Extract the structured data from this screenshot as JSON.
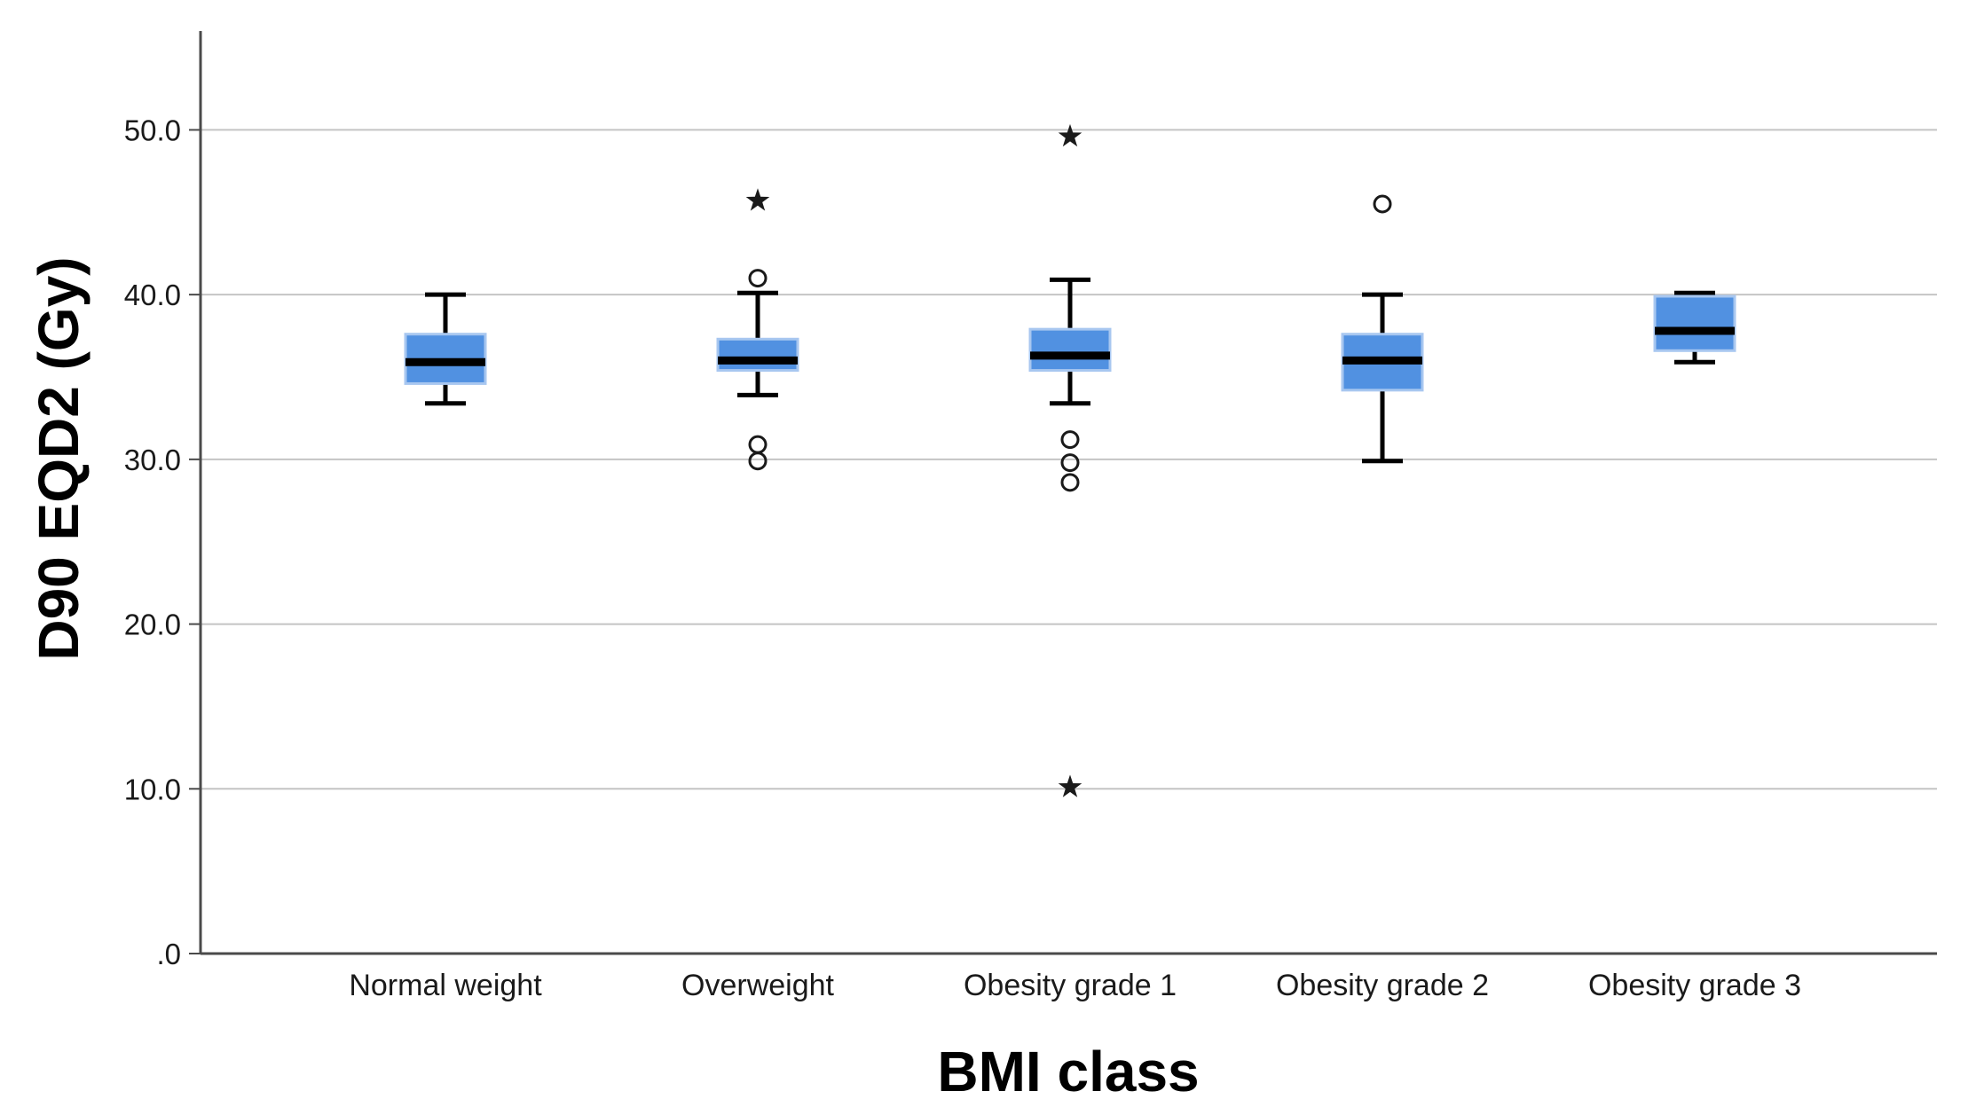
{
  "chart_data": {
    "type": "boxplot",
    "title": "",
    "xlabel": "BMI class",
    "ylabel": "D90 EQD2 (Gy)",
    "categories": [
      "Normal weight",
      "Overweight",
      "Obesity grade 1",
      "Obesity grade 2",
      "Obesity grade 3"
    ],
    "ylim": [
      0,
      56
    ],
    "grid": true,
    "legend": "none",
    "yticks": [
      {
        "value": 0,
        "label": ".0"
      },
      {
        "value": 10,
        "label": "10.0"
      },
      {
        "value": 20,
        "label": "20.0"
      },
      {
        "value": 30,
        "label": "30.0"
      },
      {
        "value": 40,
        "label": "40.0"
      },
      {
        "value": 50,
        "label": "50.0"
      }
    ],
    "boxes": [
      {
        "category": "Normal weight",
        "whisker_low": 33.4,
        "q1": 34.6,
        "median": 35.9,
        "q3": 37.6,
        "whisker_high": 40.0,
        "outliers": []
      },
      {
        "category": "Overweight",
        "whisker_low": 33.9,
        "q1": 35.4,
        "median": 36.0,
        "q3": 37.3,
        "whisker_high": 40.1,
        "outliers": [
          {
            "value": 45.7,
            "symbol": "star"
          },
          {
            "value": 41.0,
            "symbol": "circle"
          },
          {
            "value": 30.9,
            "symbol": "circle"
          },
          {
            "value": 29.9,
            "symbol": "circle"
          }
        ]
      },
      {
        "category": "Obesity grade 1",
        "whisker_low": 33.4,
        "q1": 35.4,
        "median": 36.3,
        "q3": 37.9,
        "whisker_high": 40.9,
        "outliers": [
          {
            "value": 49.6,
            "symbol": "star"
          },
          {
            "value": 31.2,
            "symbol": "circle"
          },
          {
            "value": 29.8,
            "symbol": "circle"
          },
          {
            "value": 28.6,
            "symbol": "circle"
          },
          {
            "value": 10.1,
            "symbol": "star"
          }
        ]
      },
      {
        "category": "Obesity grade 2",
        "whisker_low": 29.9,
        "q1": 34.2,
        "median": 36.0,
        "q3": 37.6,
        "whisker_high": 40.0,
        "outliers": [
          {
            "value": 45.5,
            "symbol": "circle"
          }
        ]
      },
      {
        "category": "Obesity grade 3",
        "whisker_low": 35.9,
        "q1": 36.6,
        "median": 37.8,
        "q3": 39.9,
        "whisker_high": 40.1,
        "outliers": []
      }
    ],
    "colors": {
      "box_fill": "#5191e1",
      "box_border": "#a8c7f0",
      "median": "#000000",
      "whisker": "#000000",
      "outlier": "#1a1a1a",
      "gridline": "#c4c4c4",
      "axis": "#4a4a4a",
      "tick_text": "#1a1a1a",
      "background": "#ffffff"
    }
  }
}
